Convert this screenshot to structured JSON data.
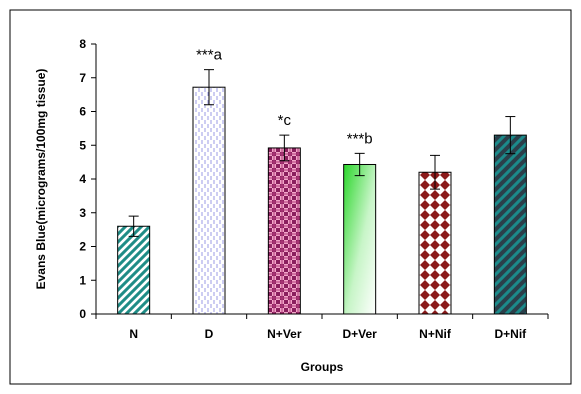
{
  "chart_data": {
    "type": "bar",
    "title": "",
    "xlabel": "Groups",
    "ylabel": "Evans Blue(micrograms/100mg tissue)",
    "ylim": [
      0,
      8
    ],
    "yticks": [
      "0",
      "1",
      "2",
      "3",
      "4",
      "5",
      "6",
      "7",
      "8"
    ],
    "grid": false,
    "categories": [
      "N",
      "D",
      "N+Ver",
      "D+Ver",
      "N+Nif",
      "D+Nif"
    ],
    "values": [
      2.6,
      6.72,
      4.92,
      4.43,
      4.2,
      5.3
    ],
    "errors": [
      0.3,
      0.52,
      0.38,
      0.33,
      0.5,
      0.55
    ],
    "annotations": [
      "",
      "***a",
      "*c",
      "***b",
      "",
      ""
    ],
    "bar_styles": [
      {
        "pattern": "diagonal-stripes",
        "colors": [
          "#1f8c86",
          "#ffffff"
        ]
      },
      {
        "pattern": "dashed-vertical",
        "colors": [
          "#9b9be6",
          "#ffffff"
        ]
      },
      {
        "pattern": "plaid",
        "colors": [
          "#8a1f5e",
          "#f2a6c8"
        ]
      },
      {
        "pattern": "gradient",
        "colors": [
          "#2ad62a",
          "#ffffff"
        ]
      },
      {
        "pattern": "diamonds",
        "colors": [
          "#8b1a1a",
          "#ffffff"
        ]
      },
      {
        "pattern": "wide-diagonal-stripes",
        "colors": [
          "#1b6b7a",
          "#2b3f4a"
        ]
      }
    ]
  }
}
